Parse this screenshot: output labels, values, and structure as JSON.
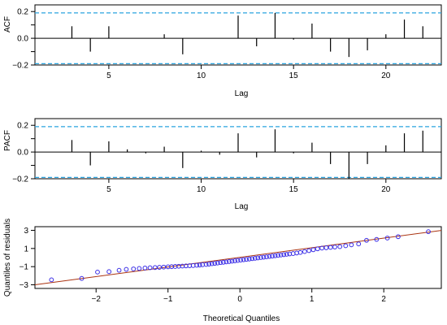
{
  "chart_data": [
    {
      "type": "bar",
      "ylabel": "ACF",
      "xlabel": "Lag",
      "xlim": [
        1,
        23
      ],
      "ylim": [
        -0.2,
        0.25
      ],
      "xticks": [
        5,
        10,
        15,
        20
      ],
      "yticks": [
        -0.2,
        -0.1,
        0.0,
        0.1,
        0.2
      ],
      "ytick_labels": [
        "−0.2",
        "",
        "0.0",
        "",
        "0.2"
      ],
      "confidence_band": 0.19,
      "lags": [
        1,
        2,
        3,
        4,
        5,
        6,
        7,
        8,
        9,
        10,
        11,
        12,
        13,
        14,
        15,
        16,
        17,
        18,
        19,
        20,
        21,
        22
      ],
      "values": [
        0.0,
        0.0,
        0.09,
        -0.1,
        0.09,
        0.0,
        0.0,
        0.03,
        -0.12,
        0.0,
        0.0,
        0.17,
        -0.06,
        0.19,
        -0.01,
        0.11,
        -0.1,
        -0.14,
        -0.09,
        0.03,
        0.14,
        0.09
      ]
    },
    {
      "type": "bar",
      "ylabel": "PACF",
      "xlabel": "Lag",
      "xlim": [
        1,
        23
      ],
      "ylim": [
        -0.2,
        0.25
      ],
      "xticks": [
        5,
        10,
        15,
        20
      ],
      "yticks": [
        -0.2,
        -0.1,
        0.0,
        0.1,
        0.2
      ],
      "ytick_labels": [
        "−0.2",
        "",
        "0.0",
        "",
        "0.2"
      ],
      "confidence_band": 0.19,
      "lags": [
        3,
        4,
        5,
        6,
        7,
        8,
        9,
        10,
        11,
        12,
        13,
        14,
        15,
        16,
        17,
        18,
        19,
        20,
        21,
        22
      ],
      "values": [
        0.09,
        -0.1,
        0.08,
        0.02,
        -0.01,
        0.04,
        -0.12,
        0.01,
        -0.02,
        0.14,
        -0.04,
        0.17,
        -0.01,
        0.07,
        -0.09,
        -0.2,
        -0.09,
        0.05,
        0.14,
        0.16
      ]
    },
    {
      "type": "scatter",
      "ylabel": "Quantiles of residuals",
      "xlabel": "Theoretical Quantiles",
      "xlim": [
        -2.85,
        2.8
      ],
      "ylim": [
        -3.4,
        3.4
      ],
      "xticks": [
        -2,
        -1,
        0,
        1,
        2
      ],
      "yticks": [
        -3,
        -1,
        1,
        3
      ],
      "point_color": "#3b2ee6",
      "reference_line": {
        "intercept": 0.02,
        "slope": 1.06,
        "color": "#aa3311"
      },
      "points": [
        [
          -2.62,
          -2.45
        ],
        [
          -2.2,
          -2.3
        ],
        [
          -1.98,
          -1.6
        ],
        [
          -1.82,
          -1.55
        ],
        [
          -1.68,
          -1.4
        ],
        [
          -1.58,
          -1.3
        ],
        [
          -1.48,
          -1.25
        ],
        [
          -1.4,
          -1.2
        ],
        [
          -1.32,
          -1.15
        ],
        [
          -1.25,
          -1.12
        ],
        [
          -1.18,
          -1.1
        ],
        [
          -1.12,
          -1.08
        ],
        [
          -1.06,
          -1.05
        ],
        [
          -1.0,
          -1.02
        ],
        [
          -0.95,
          -1.0
        ],
        [
          -0.9,
          -0.98
        ],
        [
          -0.85,
          -0.96
        ],
        [
          -0.8,
          -0.94
        ],
        [
          -0.75,
          -0.92
        ],
        [
          -0.7,
          -0.9
        ],
        [
          -0.65,
          -0.88
        ],
        [
          -0.6,
          -0.85
        ],
        [
          -0.56,
          -0.82
        ],
        [
          -0.52,
          -0.79
        ],
        [
          -0.47,
          -0.76
        ],
        [
          -0.43,
          -0.72
        ],
        [
          -0.39,
          -0.68
        ],
        [
          -0.35,
          -0.64
        ],
        [
          -0.31,
          -0.6
        ],
        [
          -0.27,
          -0.56
        ],
        [
          -0.23,
          -0.52
        ],
        [
          -0.19,
          -0.48
        ],
        [
          -0.15,
          -0.44
        ],
        [
          -0.11,
          -0.4
        ],
        [
          -0.07,
          -0.36
        ],
        [
          -0.03,
          -0.32
        ],
        [
          0.01,
          -0.28
        ],
        [
          0.05,
          -0.24
        ],
        [
          0.09,
          -0.2
        ],
        [
          0.13,
          -0.16
        ],
        [
          0.17,
          -0.12
        ],
        [
          0.21,
          -0.08
        ],
        [
          0.25,
          -0.04
        ],
        [
          0.29,
          0.0
        ],
        [
          0.33,
          0.04
        ],
        [
          0.37,
          0.08
        ],
        [
          0.41,
          0.12
        ],
        [
          0.45,
          0.16
        ],
        [
          0.49,
          0.2
        ],
        [
          0.53,
          0.24
        ],
        [
          0.57,
          0.28
        ],
        [
          0.61,
          0.32
        ],
        [
          0.65,
          0.36
        ],
        [
          0.69,
          0.4
        ],
        [
          0.74,
          0.44
        ],
        [
          0.79,
          0.5
        ],
        [
          0.84,
          0.56
        ],
        [
          0.9,
          0.66
        ],
        [
          0.96,
          0.76
        ],
        [
          1.02,
          0.86
        ],
        [
          1.08,
          0.96
        ],
        [
          1.14,
          1.04
        ],
        [
          1.2,
          1.08
        ],
        [
          1.26,
          1.12
        ],
        [
          1.32,
          1.16
        ],
        [
          1.39,
          1.2
        ],
        [
          1.47,
          1.3
        ],
        [
          1.55,
          1.4
        ],
        [
          1.65,
          1.5
        ],
        [
          1.76,
          1.9
        ],
        [
          1.9,
          2.0
        ],
        [
          2.05,
          2.15
        ],
        [
          2.2,
          2.3
        ],
        [
          2.62,
          2.85
        ]
      ]
    }
  ]
}
